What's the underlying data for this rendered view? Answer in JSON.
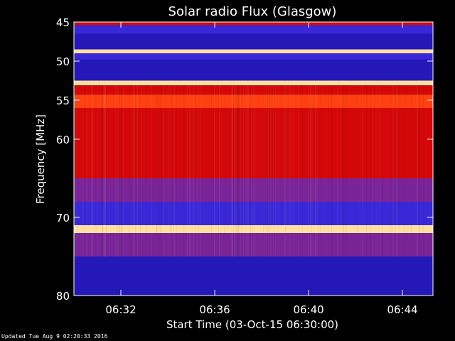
{
  "chart_data": {
    "type": "heatmap",
    "title": "Solar radio Flux (Glasgow)",
    "xlabel": "Start Time (03-Oct-15 06:30:00)",
    "ylabel": "Frequency [MHz]",
    "x_unit": "minutes after 06:30:00",
    "xlim": [
      0,
      15.3
    ],
    "ylim": [
      45,
      80
    ],
    "y_reversed": true,
    "x_ticks": [
      {
        "value": 2,
        "label": "06:32"
      },
      {
        "value": 6,
        "label": "06:36"
      },
      {
        "value": 10,
        "label": "06:40"
      },
      {
        "value": 14,
        "label": "06:44"
      }
    ],
    "y_ticks": [
      {
        "value": 45,
        "label": "45"
      },
      {
        "value": 50,
        "label": "50"
      },
      {
        "value": 55,
        "label": "55"
      },
      {
        "value": 60,
        "label": "60"
      },
      {
        "value": 70,
        "label": "70"
      },
      {
        "value": 80,
        "label": "80"
      }
    ],
    "intensity_bands": [
      {
        "from": 45.0,
        "to": 45.4,
        "level": "high"
      },
      {
        "from": 45.4,
        "to": 46.5,
        "level": "medium-low"
      },
      {
        "from": 46.5,
        "to": 48.5,
        "level": "low"
      },
      {
        "from": 48.5,
        "to": 49.0,
        "level": "saturated"
      },
      {
        "from": 49.0,
        "to": 49.8,
        "level": "medium-low"
      },
      {
        "from": 49.8,
        "to": 52.5,
        "level": "low"
      },
      {
        "from": 52.5,
        "to": 53.1,
        "level": "saturated"
      },
      {
        "from": 53.1,
        "to": 54.3,
        "level": "high"
      },
      {
        "from": 54.3,
        "to": 56.0,
        "level": "very-high"
      },
      {
        "from": 56.0,
        "to": 62.0,
        "level": "high"
      },
      {
        "from": 62.0,
        "to": 65.0,
        "level": "high"
      },
      {
        "from": 65.0,
        "to": 68.0,
        "level": "medium"
      },
      {
        "from": 68.0,
        "to": 71.0,
        "level": "medium-low"
      },
      {
        "from": 71.0,
        "to": 72.0,
        "level": "saturated"
      },
      {
        "from": 72.0,
        "to": 75.0,
        "level": "medium"
      },
      {
        "from": 75.0,
        "to": 80.0,
        "level": "low"
      }
    ],
    "colorscale": [
      "#000028",
      "#1010b0",
      "#4040e0",
      "#8020a0",
      "#c00000",
      "#ff2000",
      "#ff8000",
      "#ffff80",
      "#ffffff"
    ],
    "grid": false,
    "legend": "none"
  },
  "footer": "Updated Tue Aug  9 02:20:33 2016"
}
